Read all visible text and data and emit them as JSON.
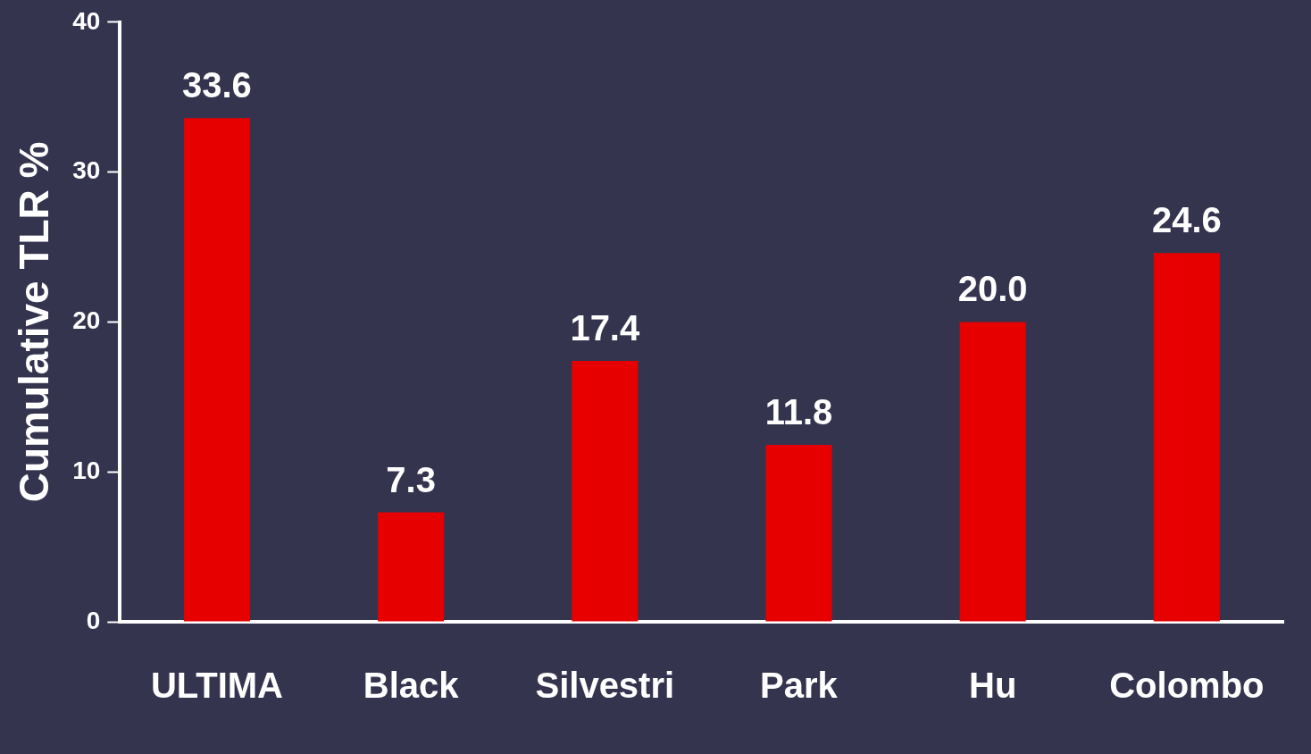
{
  "chart_data": {
    "type": "bar",
    "ylabel": "Cumulative TLR %",
    "categories": [
      "ULTIMA",
      "Black",
      "Silvestri",
      "Park",
      "Hu",
      "Colombo"
    ],
    "values": [
      33.6,
      7.3,
      17.4,
      11.8,
      20.0,
      24.6
    ],
    "value_labels": [
      "33.6",
      "7.3",
      "17.4",
      "11.8",
      "20.0",
      "24.6"
    ],
    "color": "#e60000",
    "ylim": [
      0,
      40
    ],
    "yticks": [
      0,
      10,
      20,
      30,
      40
    ],
    "grid": false,
    "legend": false
  }
}
